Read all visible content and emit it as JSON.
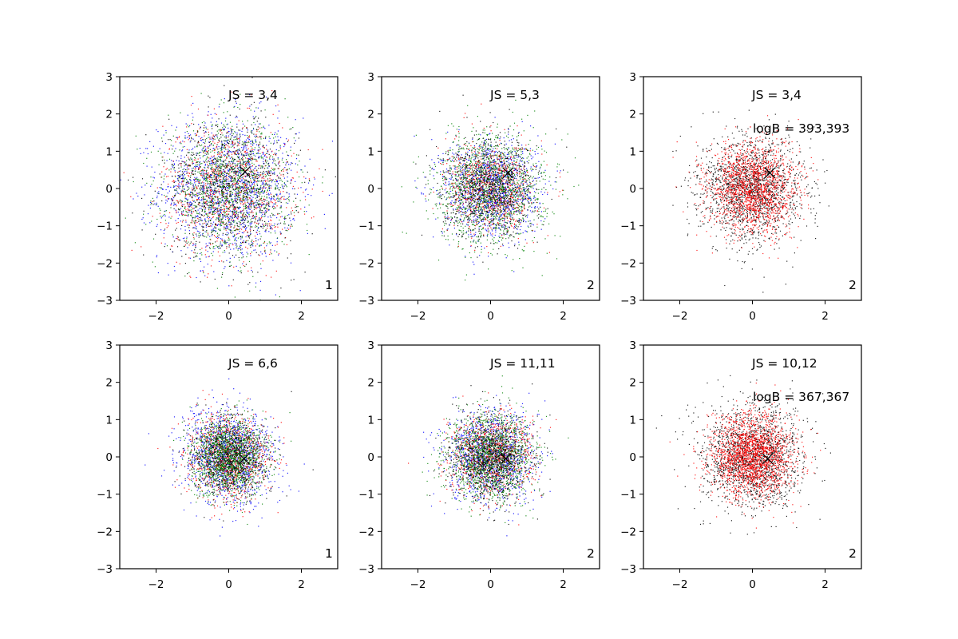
{
  "chart_data": [
    {
      "type": "scatter",
      "panel": "row1-col1",
      "xlim": [
        -3,
        3
      ],
      "ylim": [
        -3,
        3
      ],
      "xticks": [
        -2,
        0,
        2
      ],
      "yticks": [
        -3,
        -2,
        -1,
        0,
        1,
        2,
        3
      ],
      "annotation_js": "JS = 3,4",
      "corner_label": "1",
      "series": [
        {
          "color": "#0000ff",
          "sigma": 0.95,
          "n": 1500
        },
        {
          "color": "#ff0000",
          "sigma": 0.9,
          "n": 900
        },
        {
          "color": "#008000",
          "sigma": 0.85,
          "n": 1300
        },
        {
          "color": "#000000",
          "sigma": 0.9,
          "n": 900
        }
      ],
      "marker": {
        "symbol": "x",
        "x": 0.45,
        "y": 0.45
      }
    },
    {
      "type": "scatter",
      "panel": "row1-col2",
      "xlim": [
        -3,
        3
      ],
      "ylim": [
        -3,
        3
      ],
      "xticks": [
        -2,
        0,
        2
      ],
      "yticks": [
        -3,
        -2,
        -1,
        0,
        1,
        2,
        3
      ],
      "annotation_js": "JS = 5,3",
      "corner_label": "2",
      "series": [
        {
          "color": "#0000ff",
          "sigma": 0.65,
          "n": 1200
        },
        {
          "color": "#ff0000",
          "sigma": 0.6,
          "n": 800
        },
        {
          "color": "#008000",
          "sigma": 0.75,
          "n": 1400
        },
        {
          "color": "#000000",
          "sigma": 0.65,
          "n": 900
        }
      ],
      "marker": {
        "symbol": "x",
        "x": 0.48,
        "y": 0.42
      }
    },
    {
      "type": "scatter",
      "panel": "row1-col3",
      "xlim": [
        -3,
        3
      ],
      "ylim": [
        -3,
        3
      ],
      "xticks": [
        -2,
        0,
        2
      ],
      "yticks": [
        -3,
        -2,
        -1,
        0,
        1,
        2,
        3
      ],
      "annotation_js": "JS = 3,4",
      "annotation_logb": "logB = 393,393",
      "corner_label": "2",
      "series": [
        {
          "color": "#000000",
          "sigma": 0.7,
          "n": 1700
        },
        {
          "color": "#ff0000",
          "sigma": 0.6,
          "n": 1700
        }
      ],
      "marker": {
        "symbol": "x",
        "x": 0.48,
        "y": 0.42
      }
    },
    {
      "type": "scatter",
      "panel": "row2-col1",
      "xlim": [
        -3,
        3
      ],
      "ylim": [
        -3,
        3
      ],
      "xticks": [
        -2,
        0,
        2
      ],
      "yticks": [
        -3,
        -2,
        -1,
        0,
        1,
        2,
        3
      ],
      "annotation_js": "JS = 6,6",
      "corner_label": "1",
      "series": [
        {
          "color": "#0000ff",
          "sigma": 0.62,
          "n": 1300
        },
        {
          "color": "#ff0000",
          "sigma": 0.55,
          "n": 900
        },
        {
          "color": "#008000",
          "sigma": 0.5,
          "n": 1500
        },
        {
          "color": "#000000",
          "sigma": 0.55,
          "n": 700
        }
      ],
      "marker": {
        "symbol": "x",
        "x": 0.42,
        "y": -0.05
      }
    },
    {
      "type": "scatter",
      "panel": "row2-col2",
      "xlim": [
        -3,
        3
      ],
      "ylim": [
        -3,
        3
      ],
      "xticks": [
        -2,
        0,
        2
      ],
      "yticks": [
        -3,
        -2,
        -1,
        0,
        1,
        2,
        3
      ],
      "annotation_js": "JS = 11,11",
      "corner_label": "2",
      "series": [
        {
          "color": "#0000ff",
          "sigma": 0.6,
          "n": 1200
        },
        {
          "color": "#ff0000",
          "sigma": 0.55,
          "n": 900
        },
        {
          "color": "#008000",
          "sigma": 0.58,
          "n": 1400
        },
        {
          "color": "#000000",
          "sigma": 0.58,
          "n": 900
        }
      ],
      "marker": {
        "symbol": "x",
        "x": 0.42,
        "y": -0.05
      }
    },
    {
      "type": "scatter",
      "panel": "row2-col3",
      "xlim": [
        -3,
        3
      ],
      "ylim": [
        -3,
        3
      ],
      "xticks": [
        -2,
        0,
        2
      ],
      "yticks": [
        -3,
        -2,
        -1,
        0,
        1,
        2,
        3
      ],
      "annotation_js": "JS = 10,12",
      "annotation_logb": "logB = 367,367",
      "corner_label": "2",
      "series": [
        {
          "color": "#000000",
          "sigma": 0.68,
          "n": 1700
        },
        {
          "color": "#ff0000",
          "sigma": 0.55,
          "n": 2000
        }
      ],
      "marker": {
        "symbol": "x",
        "x": 0.42,
        "y": -0.05
      }
    }
  ]
}
